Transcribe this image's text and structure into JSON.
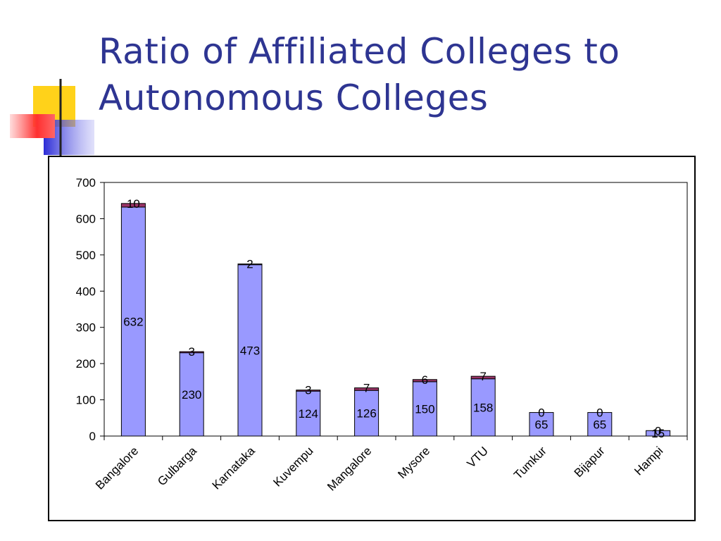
{
  "slide": {
    "title_line1": "Ratio of Affiliated Colleges to",
    "title_line2": "Autonomous Colleges"
  },
  "colors": {
    "title": "#2e3592",
    "series_affiliated": "#9999ff",
    "series_autonomous": "#993366"
  },
  "chart_data": {
    "type": "bar",
    "stacked": true,
    "categories": [
      "Bangalore",
      "Gulbarga",
      "Karnataka",
      "Kuvempu",
      "Mangalore",
      "Mysore",
      "VTU",
      "Tumkur",
      "Bijapur",
      "Hampi"
    ],
    "series": [
      {
        "values": [
          632,
          230,
          473,
          124,
          126,
          150,
          158,
          65,
          65,
          15
        ]
      },
      {
        "values": [
          10,
          3,
          2,
          3,
          7,
          6,
          7,
          0,
          0,
          0
        ]
      }
    ],
    "ylim": [
      0,
      700
    ],
    "yticks": [
      0,
      100,
      200,
      300,
      400,
      500,
      600,
      700
    ],
    "grid": false,
    "legend": "none"
  }
}
